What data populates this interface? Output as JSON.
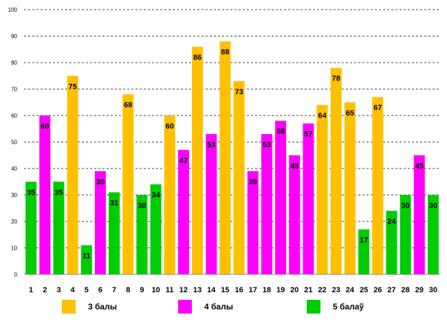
{
  "chart_data": {
    "type": "bar",
    "title": "",
    "xlabel": "",
    "ylabel": "",
    "ylim": [
      0,
      100
    ],
    "yticks": [
      0,
      10,
      20,
      30,
      40,
      50,
      60,
      70,
      80,
      90,
      100
    ],
    "grid": true,
    "categories": [
      "1",
      "2",
      "3",
      "4",
      "5",
      "6",
      "7",
      "8",
      "9",
      "10",
      "11",
      "12",
      "13",
      "14",
      "15",
      "16",
      "17",
      "18",
      "19",
      "20",
      "21",
      "22",
      "23",
      "24",
      "25",
      "26",
      "27",
      "28",
      "29",
      "30"
    ],
    "values": [
      35,
      60,
      35,
      75,
      11,
      39,
      31,
      68,
      30,
      34,
      60,
      47,
      86,
      53,
      88,
      73,
      39,
      53,
      58,
      45,
      57,
      64,
      78,
      65,
      17,
      67,
      24,
      30,
      45,
      30
    ],
    "groups": [
      2,
      1,
      2,
      0,
      2,
      1,
      2,
      0,
      2,
      2,
      0,
      1,
      0,
      1,
      0,
      0,
      1,
      1,
      1,
      1,
      1,
      0,
      0,
      0,
      2,
      0,
      2,
      2,
      1,
      2
    ],
    "legend": [
      {
        "label": "3 балы",
        "color": "#FFC000"
      },
      {
        "label": "4 балы",
        "color": "#FF00FF"
      },
      {
        "label": "5 балаў",
        "color": "#00CC00"
      }
    ],
    "legend_position": "bottom"
  }
}
